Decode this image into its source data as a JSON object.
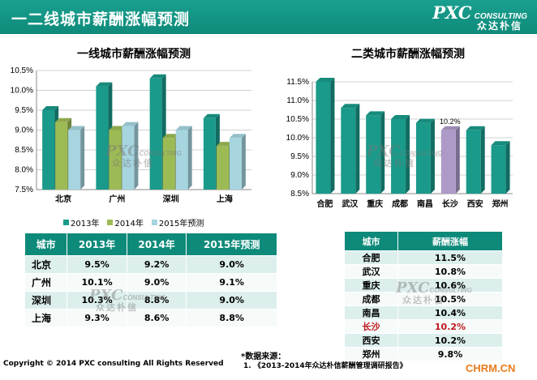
{
  "header": {
    "title": "一二线城市薪酬涨幅预测",
    "brand_main": "PXC",
    "brand_sub": "CONSULTING",
    "brand_cn": "众达朴信"
  },
  "chart_data": [
    {
      "type": "bar",
      "title": "一线城市薪酬涨幅预测",
      "categories": [
        "北京",
        "广州",
        "深圳",
        "上海"
      ],
      "series": [
        {
          "name": "2013年",
          "values": [
            9.5,
            10.1,
            10.3,
            9.3
          ]
        },
        {
          "name": "2014年",
          "values": [
            9.2,
            9.0,
            8.8,
            8.6
          ]
        },
        {
          "name": "2015年预测",
          "values": [
            9.0,
            9.1,
            9.0,
            8.8
          ]
        }
      ],
      "ylim": [
        7.5,
        10.5
      ],
      "yticks": [
        "7.5%",
        "8.0%",
        "8.5%",
        "9.0%",
        "9.5%",
        "10.0%",
        "10.5%"
      ],
      "colors": [
        "#1a9a8a",
        "#9dbb55",
        "#a6d5e0"
      ],
      "legend": "bottom",
      "xlabel": "",
      "ylabel": ""
    },
    {
      "type": "bar",
      "title": "二类城市薪酬涨幅预测",
      "categories": [
        "合肥",
        "武汉",
        "重庆",
        "成都",
        "南昌",
        "长沙",
        "西安",
        "郑州"
      ],
      "values": [
        11.5,
        10.8,
        10.6,
        10.5,
        10.4,
        10.2,
        10.2,
        9.8
      ],
      "highlight_index": 5,
      "highlight_label": "10.2%",
      "ylim": [
        8.5,
        11.5
      ],
      "yticks": [
        "8.5%",
        "9.0%",
        "9.5%",
        "10.0%",
        "10.5%",
        "11.0%",
        "11.5%"
      ],
      "colors": [
        "#1a9a8a",
        "#ad9ac8"
      ],
      "xlabel": "",
      "ylabel": ""
    }
  ],
  "table1": {
    "headers": [
      "城市",
      "2013年",
      "2014年",
      "2015年预测"
    ],
    "rows": [
      [
        "北京",
        "9.5%",
        "9.2%",
        "9.0%"
      ],
      [
        "广州",
        "10.1%",
        "9.0%",
        "9.1%"
      ],
      [
        "深圳",
        "10.3%",
        "8.8%",
        "9.0%"
      ],
      [
        "上海",
        "9.3%",
        "8.6%",
        "8.8%"
      ]
    ]
  },
  "table2": {
    "headers": [
      "城市",
      "薪酬涨幅"
    ],
    "rows": [
      [
        "合肥",
        "11.5%"
      ],
      [
        "武汉",
        "10.8%"
      ],
      [
        "重庆",
        "10.6%"
      ],
      [
        "成都",
        "10.5%"
      ],
      [
        "南昌",
        "10.4%"
      ],
      [
        "长沙",
        "10.2%"
      ],
      [
        "西安",
        "10.2%"
      ],
      [
        "郑州",
        "9.8%"
      ]
    ],
    "highlight_row": 5,
    "highlight_color": "#c0171d"
  },
  "footer": {
    "copyright": "Copyright © 2014  PXC consulting All Rights Reserved",
    "source_label": "*数据来源：",
    "source_text": "1.    《2013-2014年众达朴信薪酬管理调研报告》",
    "site": "CHRM.CN"
  }
}
